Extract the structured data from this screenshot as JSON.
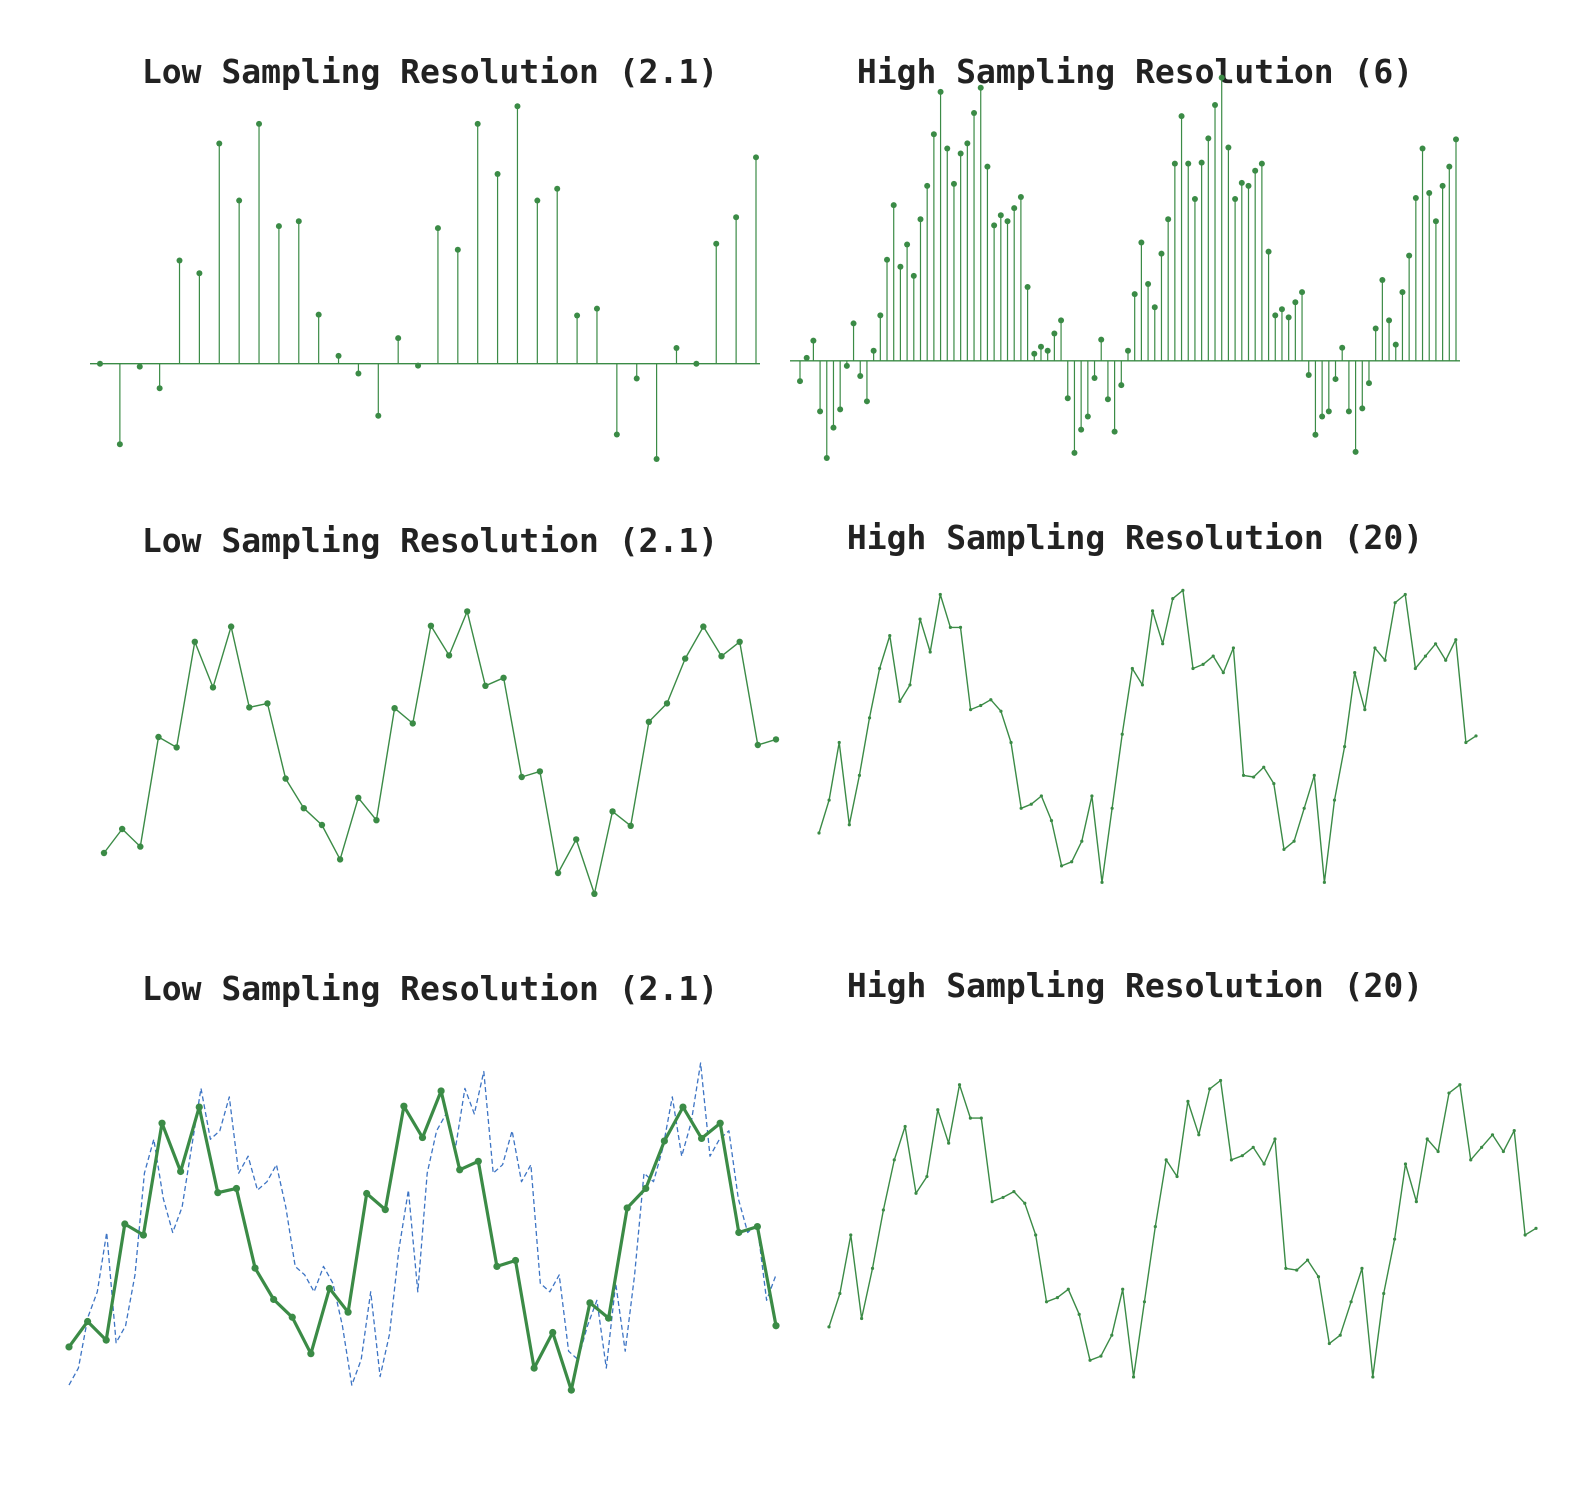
{
  "colors": {
    "green": "#3b8b46",
    "blue": "#3d74c4",
    "title": "#222222"
  },
  "chart_data": [
    {
      "type": "stem",
      "title": "Low Sampling Resolution (2.1)",
      "grid": false,
      "ylim": [
        -1.0,
        2.5
      ],
      "values": [
        0.0,
        -0.82,
        -0.03,
        -0.25,
        1.05,
        0.92,
        2.24,
        1.66,
        2.44,
        1.4,
        1.45,
        0.5,
        0.08,
        -0.1,
        -0.53,
        0.26,
        -0.02,
        1.38,
        1.16,
        2.44,
        1.93,
        2.62,
        1.66,
        1.78,
        0.49,
        0.56,
        -0.72,
        -0.15,
        -0.97,
        0.16,
        0.0,
        1.22,
        1.49,
        2.1
      ]
    },
    {
      "type": "stem",
      "title": "High Sampling Resolution (6)",
      "grid": false,
      "ylim": [
        -1.0,
        2.5
      ],
      "values": [
        -0.2,
        0.03,
        0.2,
        -0.5,
        -0.96,
        -0.66,
        -0.48,
        -0.05,
        0.37,
        -0.15,
        -0.4,
        0.1,
        0.45,
        1.0,
        1.54,
        0.93,
        1.15,
        0.84,
        1.4,
        1.73,
        2.24,
        2.66,
        2.1,
        1.75,
        2.05,
        2.15,
        2.45,
        2.7,
        1.92,
        1.34,
        1.44,
        1.38,
        1.51,
        1.62,
        0.73,
        0.07,
        0.14,
        0.1,
        0.27,
        0.4,
        -0.37,
        -0.91,
        -0.68,
        -0.55,
        -0.17,
        0.21,
        -0.38,
        -0.7,
        -0.24,
        0.1,
        0.66,
        1.17,
        0.76,
        0.53,
        1.06,
        1.4,
        1.95,
        2.42,
        1.95,
        1.6,
        1.96,
        2.2,
        2.53,
        2.8,
        2.11,
        1.6,
        1.76,
        1.73,
        1.88,
        1.95,
        1.08,
        0.45,
        0.51,
        0.43,
        0.58,
        0.68,
        -0.14,
        -0.73,
        -0.55,
        -0.5,
        -0.18,
        0.13,
        -0.5,
        -0.9,
        -0.47,
        -0.22,
        0.32,
        0.8,
        0.4,
        0.16,
        0.68,
        1.04,
        1.61,
        2.1,
        1.66,
        1.38,
        1.73,
        1.92,
        2.19
      ]
    },
    {
      "type": "line",
      "title": "Low Sampling Resolution (2.1)",
      "grid": false,
      "ylim": [
        -1.8,
        2.2
      ],
      "values": [
        -1.15,
        -0.85,
        -1.07,
        0.3,
        0.17,
        1.49,
        0.92,
        1.68,
        0.67,
        0.72,
        -0.22,
        -0.59,
        -0.8,
        -1.23,
        -0.46,
        -0.74,
        0.66,
        0.47,
        1.69,
        1.32,
        1.87,
        0.94,
        1.04,
        -0.2,
        -0.13,
        -1.4,
        -0.98,
        -1.66,
        -0.63,
        -0.81,
        0.49,
        0.72,
        1.28,
        1.68,
        1.31,
        1.49,
        0.2,
        0.27
      ]
    },
    {
      "type": "line",
      "title": "High Sampling Resolution (20)",
      "grid": false,
      "ylim": [
        -1.8,
        2.2
      ],
      "values": [
        -0.9,
        -0.5,
        0.2,
        -0.8,
        -0.2,
        0.5,
        1.1,
        1.5,
        0.7,
        0.9,
        1.7,
        1.3,
        2.0,
        1.6,
        1.6,
        0.6,
        0.65,
        0.72,
        0.58,
        0.2,
        -0.6,
        -0.55,
        -0.45,
        -0.75,
        -1.3,
        -1.25,
        -1.0,
        -0.45,
        -1.5,
        -0.6,
        0.3,
        1.1,
        0.9,
        1.8,
        1.4,
        1.95,
        2.05,
        1.1,
        1.15,
        1.25,
        1.05,
        1.35,
        -0.2,
        -0.22,
        -0.1,
        -0.3,
        -1.1,
        -1.0,
        -0.6,
        -0.2,
        -1.5,
        -0.5,
        0.15,
        1.05,
        0.6,
        1.35,
        1.2,
        1.9,
        2.0,
        1.1,
        1.25,
        1.4,
        1.2,
        1.45,
        0.2,
        0.28
      ]
    },
    {
      "type": "line",
      "title": "Low Sampling Resolution (2.1)",
      "grid": false,
      "ylim": [
        -1.8,
        2.2
      ],
      "series": [
        {
          "style": "solid",
          "values": [
            -1.15,
            -0.85,
            -1.07,
            0.3,
            0.17,
            1.49,
            0.92,
            1.68,
            0.67,
            0.72,
            -0.22,
            -0.59,
            -0.8,
            -1.23,
            -0.46,
            -0.74,
            0.66,
            0.47,
            1.69,
            1.32,
            1.87,
            0.94,
            1.04,
            -0.2,
            -0.13,
            -1.4,
            -0.98,
            -1.66,
            -0.63,
            -0.81,
            0.49,
            0.72,
            1.28,
            1.68,
            1.31,
            1.49,
            0.2,
            0.27,
            -0.9
          ]
        },
        {
          "style": "dashed",
          "values": [
            -1.6,
            -1.4,
            -0.8,
            -0.5,
            0.2,
            -1.1,
            -0.9,
            -0.3,
            0.9,
            1.3,
            0.6,
            0.2,
            0.5,
            1.2,
            1.9,
            1.3,
            1.4,
            1.8,
            0.9,
            1.1,
            0.7,
            0.8,
            1.0,
            0.5,
            -0.2,
            -0.3,
            -0.5,
            -0.2,
            -0.4,
            -0.9,
            -1.6,
            -1.3,
            -0.5,
            -1.5,
            -1.0,
            0.0,
            0.7,
            -0.5,
            0.9,
            1.4,
            1.6,
            1.2,
            1.9,
            1.6,
            2.1,
            0.9,
            1.0,
            1.4,
            0.8,
            1.0,
            -0.4,
            -0.5,
            -0.3,
            -1.2,
            -1.3,
            -0.9,
            -0.6,
            -1.4,
            -0.4,
            -1.2,
            -0.3,
            0.9,
            0.8,
            1.2,
            1.8,
            1.1,
            1.5,
            2.2,
            1.1,
            1.3,
            1.4,
            0.6,
            0.2,
            0.3,
            -0.6,
            -0.3
          ]
        }
      ]
    },
    {
      "type": "line",
      "title": "High Sampling Resolution (20)",
      "grid": false,
      "ylim": [
        -1.8,
        2.2
      ],
      "values": [
        -0.9,
        -0.5,
        0.2,
        -0.8,
        -0.2,
        0.5,
        1.1,
        1.5,
        0.7,
        0.9,
        1.7,
        1.3,
        2.0,
        1.6,
        1.6,
        0.6,
        0.65,
        0.72,
        0.58,
        0.2,
        -0.6,
        -0.55,
        -0.45,
        -0.75,
        -1.3,
        -1.25,
        -1.0,
        -0.45,
        -1.5,
        -0.6,
        0.3,
        1.1,
        0.9,
        1.8,
        1.4,
        1.95,
        2.05,
        1.1,
        1.15,
        1.25,
        1.05,
        1.35,
        -0.2,
        -0.22,
        -0.1,
        -0.3,
        -1.1,
        -1.0,
        -0.6,
        -0.2,
        -1.5,
        -0.5,
        0.15,
        1.05,
        0.6,
        1.35,
        1.2,
        1.9,
        2.0,
        1.1,
        1.25,
        1.4,
        1.2,
        1.45,
        0.2,
        0.28
      ]
    }
  ]
}
